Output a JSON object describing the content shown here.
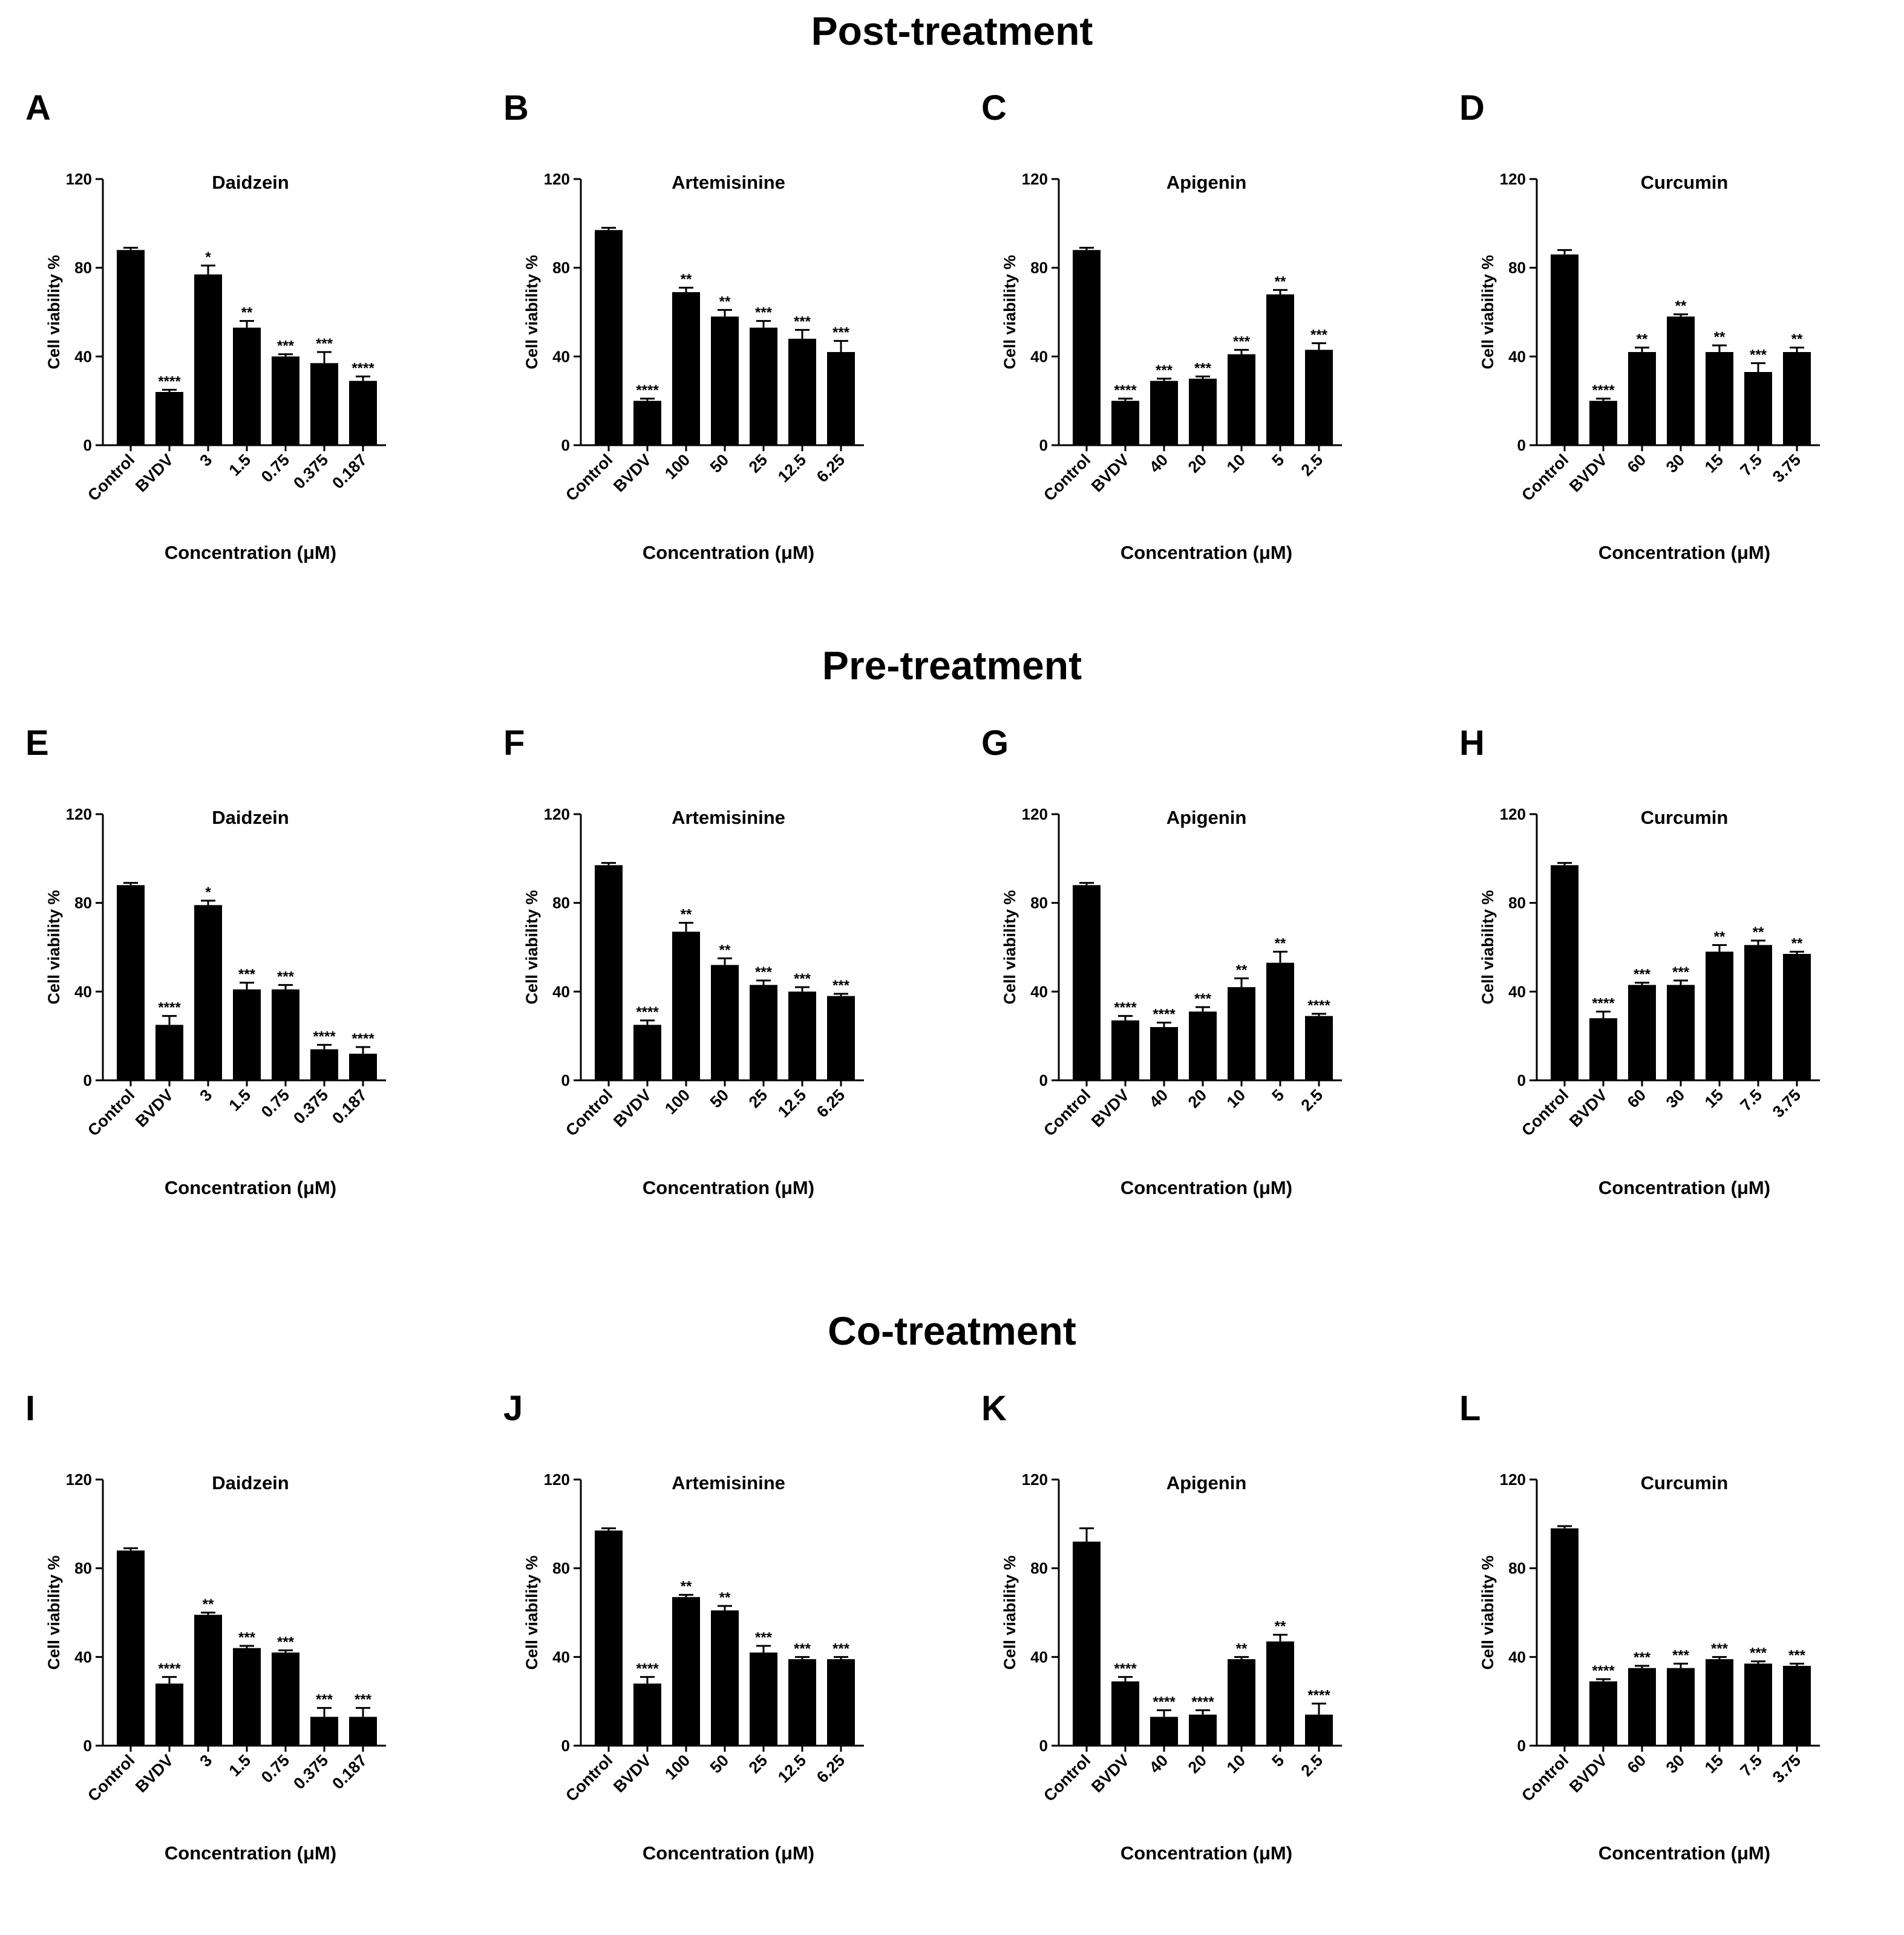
{
  "sections": [
    {
      "title": "Post-treatment"
    },
    {
      "title": "Pre-treatment"
    },
    {
      "title": "Co-treatment"
    }
  ],
  "colors": {
    "bar": "#000000",
    "axis": "#000000",
    "background": "#ffffff"
  },
  "chart_data": [
    {
      "panel": "A",
      "section": "Post-treatment",
      "type": "bar",
      "title": "Daidzein",
      "xlabel": "Concentration (μM)",
      "ylabel": "Cell viability %",
      "ylim": [
        0,
        120
      ],
      "yticks": [
        0,
        40,
        80,
        120
      ],
      "categories": [
        "Control",
        "BVDV",
        "3",
        "1.5",
        "0.75",
        "0.375",
        "0.187"
      ],
      "values": [
        88,
        24,
        77,
        53,
        40,
        37,
        29
      ],
      "errors": [
        1,
        1,
        4,
        3,
        1,
        5,
        2
      ],
      "significance": [
        "",
        "****",
        "*",
        "**",
        "***",
        "***",
        "****"
      ]
    },
    {
      "panel": "B",
      "section": "Post-treatment",
      "type": "bar",
      "title": "Artemisinine",
      "xlabel": "Concentration (μM)",
      "ylabel": "Cell viability %",
      "ylim": [
        0,
        120
      ],
      "yticks": [
        0,
        40,
        80,
        120
      ],
      "categories": [
        "Control",
        "BVDV",
        "100",
        "50",
        "25",
        "12.5",
        "6.25"
      ],
      "values": [
        97,
        20,
        69,
        58,
        53,
        48,
        42
      ],
      "errors": [
        1,
        1,
        2,
        3,
        3,
        4,
        5
      ],
      "significance": [
        "",
        "****",
        "**",
        "**",
        "***",
        "***",
        "***"
      ]
    },
    {
      "panel": "C",
      "section": "Post-treatment",
      "type": "bar",
      "title": "Apigenin",
      "xlabel": "Concentration (μM)",
      "ylabel": "Cell viability %",
      "ylim": [
        0,
        120
      ],
      "yticks": [
        0,
        40,
        80,
        120
      ],
      "categories": [
        "Control",
        "BVDV",
        "40",
        "20",
        "10",
        "5",
        "2.5"
      ],
      "values": [
        88,
        20,
        29,
        30,
        41,
        68,
        43
      ],
      "errors": [
        1,
        1,
        1,
        1,
        2,
        2,
        3
      ],
      "significance": [
        "",
        "****",
        "***",
        "***",
        "***",
        "**",
        "***"
      ]
    },
    {
      "panel": "D",
      "section": "Post-treatment",
      "type": "bar",
      "title": "Curcumin",
      "xlabel": "Concentration (μM)",
      "ylabel": "Cell viability %",
      "ylim": [
        0,
        120
      ],
      "yticks": [
        0,
        40,
        80,
        120
      ],
      "categories": [
        "Control",
        "BVDV",
        "60",
        "30",
        "15",
        "7.5",
        "3.75"
      ],
      "values": [
        86,
        20,
        42,
        58,
        42,
        33,
        42
      ],
      "errors": [
        2,
        1,
        2,
        1,
        3,
        4,
        2
      ],
      "significance": [
        "",
        "****",
        "**",
        "**",
        "**",
        "***",
        "**"
      ]
    },
    {
      "panel": "E",
      "section": "Pre-treatment",
      "type": "bar",
      "title": "Daidzein",
      "xlabel": "Concentration (μM)",
      "ylabel": "Cell viability %",
      "ylim": [
        0,
        120
      ],
      "yticks": [
        0,
        40,
        80,
        120
      ],
      "categories": [
        "Control",
        "BVDV",
        "3",
        "1.5",
        "0.75",
        "0.375",
        "0.187"
      ],
      "values": [
        88,
        25,
        79,
        41,
        41,
        14,
        12
      ],
      "errors": [
        1,
        4,
        2,
        3,
        2,
        2,
        3
      ],
      "significance": [
        "",
        "****",
        "*",
        "***",
        "***",
        "****",
        "****"
      ]
    },
    {
      "panel": "F",
      "section": "Pre-treatment",
      "type": "bar",
      "title": "Artemisinine",
      "xlabel": "Concentration (μM)",
      "ylabel": "Cell viability %",
      "ylim": [
        0,
        120
      ],
      "yticks": [
        0,
        40,
        80,
        120
      ],
      "categories": [
        "Control",
        "BVDV",
        "100",
        "50",
        "25",
        "12.5",
        "6.25"
      ],
      "values": [
        97,
        25,
        67,
        52,
        43,
        40,
        38
      ],
      "errors": [
        1,
        2,
        4,
        3,
        2,
        2,
        1
      ],
      "significance": [
        "",
        "****",
        "**",
        "**",
        "***",
        "***",
        "***"
      ]
    },
    {
      "panel": "G",
      "section": "Pre-treatment",
      "type": "bar",
      "title": "Apigenin",
      "xlabel": "Concentration (μM)",
      "ylabel": "Cell viability %",
      "ylim": [
        0,
        120
      ],
      "yticks": [
        0,
        40,
        80,
        120
      ],
      "categories": [
        "Control",
        "BVDV",
        "40",
        "20",
        "10",
        "5",
        "2.5"
      ],
      "values": [
        88,
        27,
        24,
        31,
        42,
        53,
        29
      ],
      "errors": [
        1,
        2,
        2,
        2,
        4,
        5,
        1
      ],
      "significance": [
        "",
        "****",
        "****",
        "***",
        "**",
        "**",
        "****"
      ]
    },
    {
      "panel": "H",
      "section": "Pre-treatment",
      "type": "bar",
      "title": "Curcumin",
      "xlabel": "Concentration (μM)",
      "ylabel": "Cell viability %",
      "ylim": [
        0,
        120
      ],
      "yticks": [
        0,
        40,
        80,
        120
      ],
      "categories": [
        "Control",
        "BVDV",
        "60",
        "30",
        "15",
        "7.5",
        "3.75"
      ],
      "values": [
        97,
        28,
        43,
        43,
        58,
        61,
        57
      ],
      "errors": [
        1,
        3,
        1,
        2,
        3,
        2,
        1
      ],
      "significance": [
        "",
        "****",
        "***",
        "***",
        "**",
        "**",
        "**"
      ]
    },
    {
      "panel": "I",
      "section": "Co-treatment",
      "type": "bar",
      "title": "Daidzein",
      "xlabel": "Concentration (μM)",
      "ylabel": "Cell viability %",
      "ylim": [
        0,
        120
      ],
      "yticks": [
        0,
        40,
        80,
        120
      ],
      "categories": [
        "Control",
        "BVDV",
        "3",
        "1.5",
        "0.75",
        "0.375",
        "0.187"
      ],
      "values": [
        88,
        28,
        59,
        44,
        42,
        13,
        13
      ],
      "errors": [
        1,
        3,
        1,
        1,
        1,
        4,
        4
      ],
      "significance": [
        "",
        "****",
        "**",
        "***",
        "***",
        "***",
        "***"
      ]
    },
    {
      "panel": "J",
      "section": "Co-treatment",
      "type": "bar",
      "title": "Artemisinine",
      "xlabel": "Concentration (μM)",
      "ylabel": "Cell viability %",
      "ylim": [
        0,
        120
      ],
      "yticks": [
        0,
        40,
        80,
        120
      ],
      "categories": [
        "Control",
        "BVDV",
        "100",
        "50",
        "25",
        "12.5",
        "6.25"
      ],
      "values": [
        97,
        28,
        67,
        61,
        42,
        39,
        39
      ],
      "errors": [
        1,
        3,
        1,
        2,
        3,
        1,
        1
      ],
      "significance": [
        "",
        "****",
        "**",
        "**",
        "***",
        "***",
        "***"
      ]
    },
    {
      "panel": "K",
      "section": "Co-treatment",
      "type": "bar",
      "title": "Apigenin",
      "xlabel": "Concentration (μM)",
      "ylabel": "Cell viability %",
      "ylim": [
        0,
        120
      ],
      "yticks": [
        0,
        40,
        80,
        120
      ],
      "categories": [
        "Control",
        "BVDV",
        "40",
        "20",
        "10",
        "5",
        "2.5"
      ],
      "values": [
        92,
        29,
        13,
        14,
        39,
        47,
        14
      ],
      "errors": [
        6,
        2,
        3,
        2,
        1,
        3,
        5
      ],
      "significance": [
        "",
        "****",
        "****",
        "****",
        "**",
        "**",
        "****"
      ]
    },
    {
      "panel": "L",
      "section": "Co-treatment",
      "type": "bar",
      "title": "Curcumin",
      "xlabel": "Concentration (μM)",
      "ylabel": "Cell viability %",
      "ylim": [
        0,
        120
      ],
      "yticks": [
        0,
        40,
        80,
        120
      ],
      "categories": [
        "Control",
        "BVDV",
        "60",
        "30",
        "15",
        "7.5",
        "3.75"
      ],
      "values": [
        98,
        29,
        35,
        35,
        39,
        37,
        36
      ],
      "errors": [
        1,
        1,
        1,
        2,
        1,
        1,
        1
      ],
      "significance": [
        "",
        "****",
        "***",
        "***",
        "***",
        "***",
        "***"
      ]
    }
  ]
}
